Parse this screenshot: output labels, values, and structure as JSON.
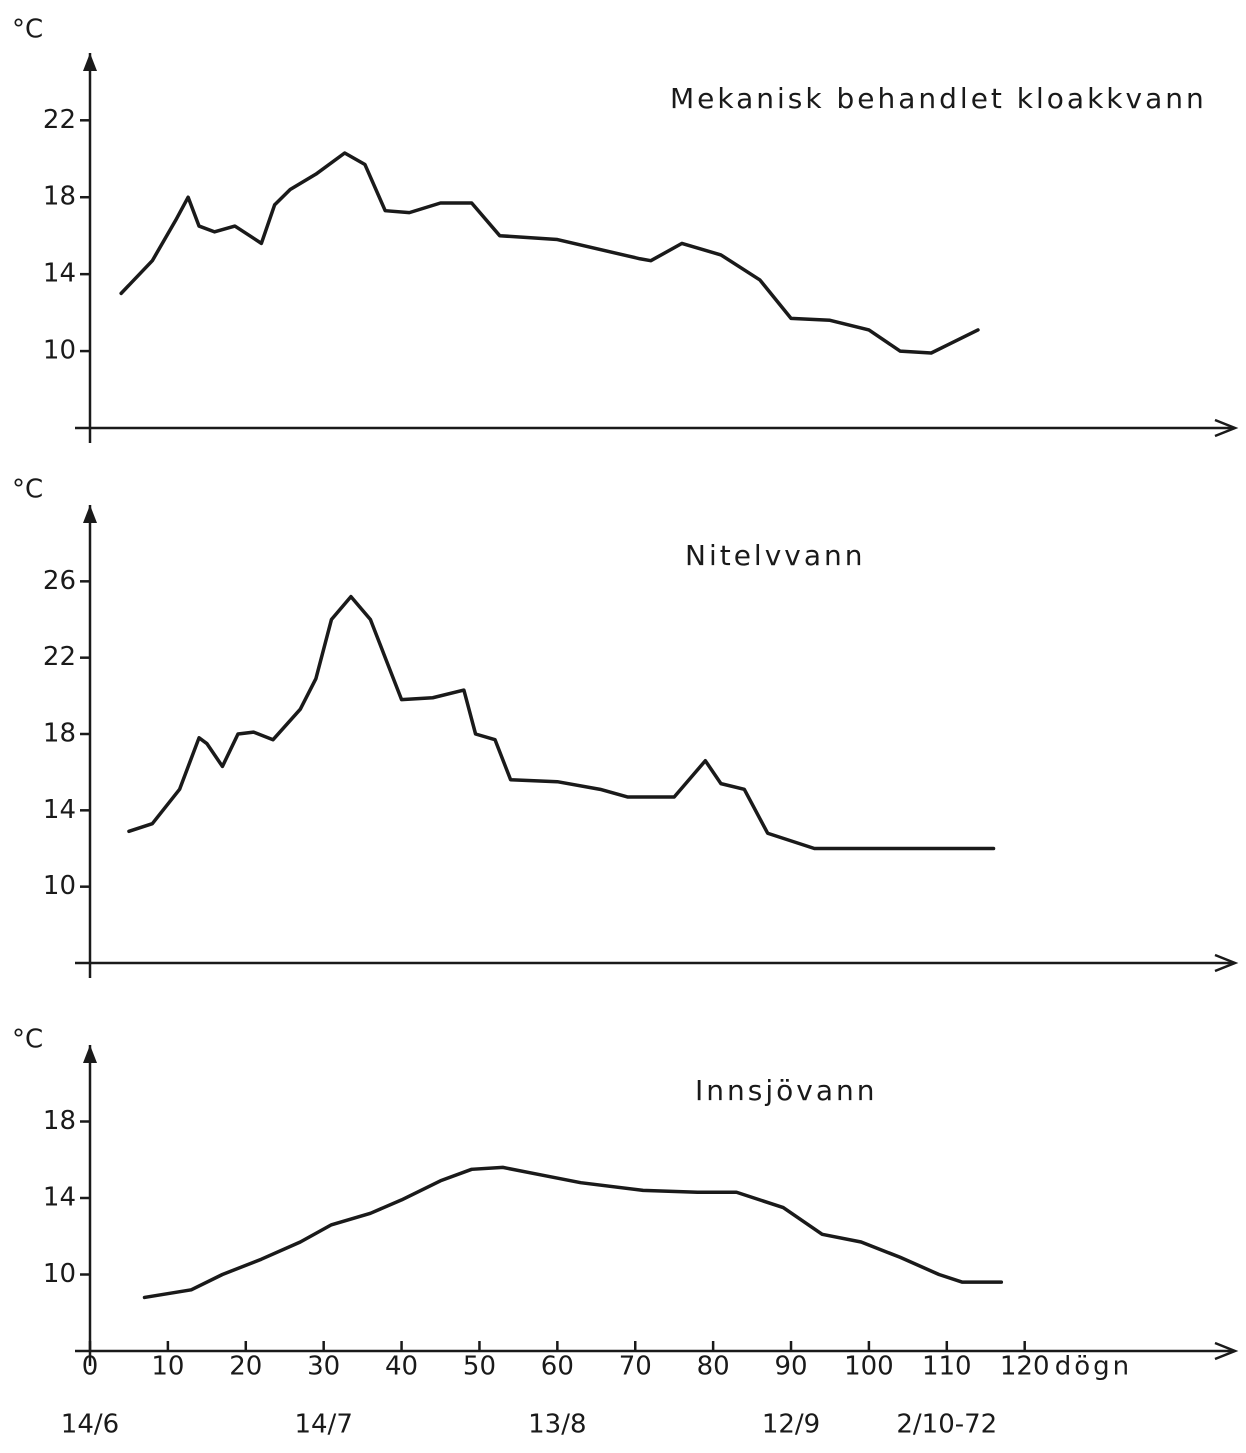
{
  "chart_data": [
    {
      "type": "line",
      "title": "Mekanisk behandlet kloakkvann",
      "ylabel": "°C",
      "color": "#1a1a1a",
      "xlim": [
        0,
        147
      ],
      "ylim": [
        6,
        25.5
      ],
      "yticks": [
        10,
        14,
        18,
        22
      ],
      "x": [
        4,
        8,
        11,
        12.6,
        14,
        16,
        18.6,
        20.5,
        22,
        23.7,
        25.7,
        29,
        32.7,
        35.3,
        37.9,
        41,
        45,
        49,
        52.6,
        60,
        70.6,
        72,
        76,
        81,
        86,
        90,
        95,
        100,
        104,
        108,
        110,
        114
      ],
      "values": [
        13.0,
        14.7,
        16.8,
        18.0,
        16.5,
        16.2,
        16.5,
        16.0,
        15.6,
        17.6,
        18.4,
        19.2,
        20.3,
        19.7,
        17.3,
        17.2,
        17.7,
        17.7,
        16.0,
        15.8,
        14.8,
        14.7,
        15.6,
        15.0,
        13.7,
        11.7,
        11.6,
        11.1,
        10.0,
        9.9,
        10.3,
        11.1
      ]
    },
    {
      "type": "line",
      "title": "Nitelvvann",
      "ylabel": "°C",
      "color": "#1a1a1a",
      "xlim": [
        0,
        147
      ],
      "ylim": [
        6,
        30
      ],
      "yticks": [
        10,
        14,
        18,
        22,
        26
      ],
      "x": [
        5,
        8,
        11.5,
        14,
        15,
        17,
        19,
        21,
        23.5,
        27,
        29,
        31,
        33.5,
        36,
        38,
        40,
        44,
        48,
        49.5,
        52,
        54,
        60,
        65.5,
        69,
        75,
        79,
        81,
        84,
        87,
        93,
        116
      ],
      "values": [
        12.9,
        13.3,
        15.1,
        17.8,
        17.5,
        16.3,
        18.0,
        18.1,
        17.7,
        19.3,
        20.9,
        24.0,
        25.2,
        24.0,
        21.9,
        19.8,
        19.9,
        20.3,
        18.0,
        17.7,
        15.6,
        15.5,
        15.1,
        14.7,
        14.7,
        16.6,
        15.4,
        15.1,
        12.8,
        12.0,
        12.0
      ]
    },
    {
      "type": "line",
      "title": "Innsjövann",
      "ylabel": "°C",
      "xlabel": "dögn",
      "color": "#1a1a1a",
      "xlim": [
        0,
        147
      ],
      "ylim": [
        6,
        22
      ],
      "yticks": [
        10,
        14,
        18
      ],
      "xticks": [
        0,
        10,
        20,
        30,
        40,
        50,
        60,
        70,
        80,
        90,
        100,
        110,
        120
      ],
      "date_ticks": [
        {
          "value": 0,
          "label": "14/6"
        },
        {
          "value": 30,
          "label": "14/7"
        },
        {
          "value": 60,
          "label": "13/8"
        },
        {
          "value": 90,
          "label": "12/9"
        },
        {
          "value": 110,
          "label": "2/10-72"
        }
      ],
      "x": [
        7,
        13,
        17,
        22,
        27,
        31,
        36,
        40,
        45,
        49,
        53,
        58,
        63,
        71,
        78,
        83,
        89,
        94,
        99,
        104,
        109,
        112,
        117
      ],
      "values": [
        8.8,
        9.2,
        10.0,
        10.8,
        11.7,
        12.6,
        13.2,
        13.9,
        14.9,
        15.5,
        15.6,
        15.2,
        14.8,
        14.4,
        14.3,
        14.3,
        13.5,
        12.1,
        11.7,
        10.9,
        10.0,
        9.6,
        9.6
      ]
    }
  ]
}
